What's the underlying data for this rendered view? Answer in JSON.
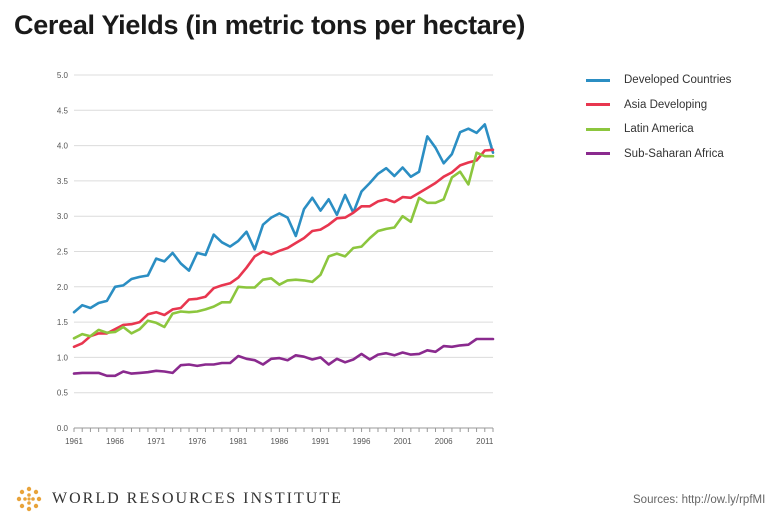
{
  "title": "Cereal Yields (in metric tons per hectare)",
  "footer": {
    "organization": "WORLD RESOURCES INSTITUTE",
    "source": "Sources: http://ow.ly/rpfMI"
  },
  "chart_data": {
    "type": "line",
    "title": "Cereal Yields (in metric tons per hectare)",
    "xlabel": "",
    "ylabel": "",
    "x": [
      1961,
      1962,
      1963,
      1964,
      1965,
      1966,
      1967,
      1968,
      1969,
      1970,
      1971,
      1972,
      1973,
      1974,
      1975,
      1976,
      1977,
      1978,
      1979,
      1980,
      1981,
      1982,
      1983,
      1984,
      1985,
      1986,
      1987,
      1988,
      1989,
      1990,
      1991,
      1992,
      1993,
      1994,
      1995,
      1996,
      1997,
      1998,
      1999,
      2000,
      2001,
      2002,
      2003,
      2004,
      2005,
      2006,
      2007,
      2008,
      2009,
      2010,
      2011,
      2012
    ],
    "xticks": [
      "1961",
      "1966",
      "1971",
      "1976",
      "1981",
      "1986",
      "1991",
      "1996",
      "2001",
      "2006",
      "2011"
    ],
    "yticks": [
      "0.0",
      "0.5",
      "1.0",
      "1.5",
      "2.0",
      "2.5",
      "3.0",
      "3.5",
      "4.0",
      "4.5",
      "5.0"
    ],
    "xlim": [
      1961,
      2012
    ],
    "ylim": [
      0,
      5
    ],
    "grid": "horizontal",
    "legend_position": "right",
    "series": [
      {
        "name": "Developed Countries",
        "color": "#2b8ec3",
        "values": [
          1.64,
          1.74,
          1.7,
          1.77,
          1.8,
          2.0,
          2.02,
          2.11,
          2.14,
          2.16,
          2.4,
          2.36,
          2.48,
          2.33,
          2.23,
          2.48,
          2.45,
          2.74,
          2.63,
          2.57,
          2.65,
          2.78,
          2.53,
          2.88,
          2.98,
          3.04,
          2.98,
          2.72,
          3.1,
          3.26,
          3.08,
          3.24,
          3.02,
          3.3,
          3.05,
          3.35,
          3.47,
          3.6,
          3.68,
          3.57,
          3.69,
          3.56,
          3.63,
          4.13,
          3.97,
          3.75,
          3.88,
          4.19,
          4.24,
          4.18,
          4.3,
          3.9
        ]
      },
      {
        "name": "Asia Developing",
        "color": "#e8364f",
        "values": [
          1.15,
          1.2,
          1.3,
          1.34,
          1.34,
          1.4,
          1.46,
          1.47,
          1.5,
          1.61,
          1.64,
          1.6,
          1.68,
          1.7,
          1.82,
          1.83,
          1.86,
          1.98,
          2.02,
          2.05,
          2.13,
          2.27,
          2.43,
          2.5,
          2.46,
          2.51,
          2.55,
          2.62,
          2.69,
          2.79,
          2.81,
          2.88,
          2.97,
          2.98,
          3.05,
          3.14,
          3.14,
          3.21,
          3.24,
          3.2,
          3.27,
          3.26,
          3.33,
          3.4,
          3.47,
          3.56,
          3.62,
          3.72,
          3.76,
          3.79,
          3.93,
          3.94
        ]
      },
      {
        "name": "Latin America",
        "color": "#8cc63e",
        "values": [
          1.27,
          1.33,
          1.3,
          1.39,
          1.35,
          1.36,
          1.43,
          1.34,
          1.4,
          1.52,
          1.49,
          1.43,
          1.62,
          1.65,
          1.64,
          1.65,
          1.68,
          1.72,
          1.78,
          1.78,
          2.0,
          1.99,
          1.99,
          2.1,
          2.12,
          2.03,
          2.09,
          2.1,
          2.09,
          2.07,
          2.17,
          2.43,
          2.47,
          2.43,
          2.55,
          2.57,
          2.69,
          2.79,
          2.82,
          2.84,
          3.0,
          2.92,
          3.26,
          3.19,
          3.19,
          3.24,
          3.55,
          3.63,
          3.45,
          3.9,
          3.85,
          3.85
        ]
      },
      {
        "name": "Sub-Saharan Africa",
        "color": "#8a2a8e",
        "values": [
          0.77,
          0.78,
          0.78,
          0.78,
          0.74,
          0.74,
          0.8,
          0.77,
          0.78,
          0.79,
          0.81,
          0.8,
          0.78,
          0.89,
          0.9,
          0.88,
          0.9,
          0.9,
          0.92,
          0.92,
          1.02,
          0.98,
          0.96,
          0.9,
          0.98,
          0.99,
          0.96,
          1.03,
          1.01,
          0.97,
          1.0,
          0.9,
          0.98,
          0.93,
          0.97,
          1.05,
          0.97,
          1.04,
          1.06,
          1.03,
          1.07,
          1.04,
          1.05,
          1.1,
          1.08,
          1.16,
          1.15,
          1.17,
          1.18,
          1.26,
          1.26,
          1.26
        ]
      }
    ]
  }
}
